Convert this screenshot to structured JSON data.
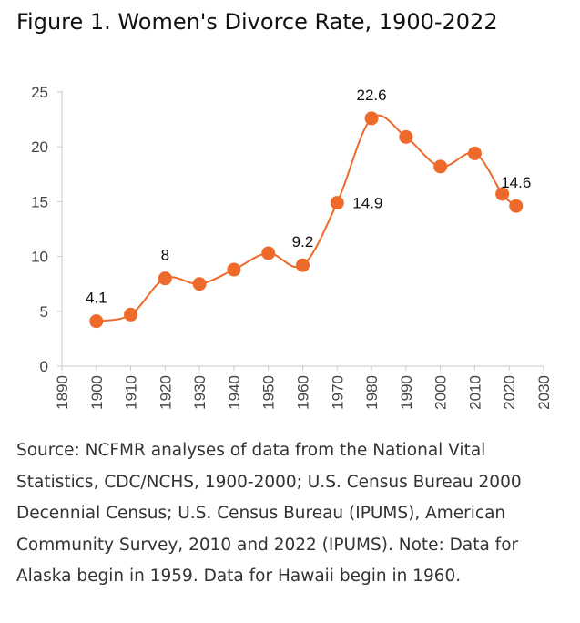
{
  "header": {
    "title": "Figure 1. Women's Divorce Rate, 1900-2022"
  },
  "chart_data": {
    "type": "line",
    "title": "",
    "xlabel": "",
    "ylabel": "",
    "xlim": [
      1890,
      2030
    ],
    "ylim": [
      0,
      25
    ],
    "x_ticks": [
      1890,
      1900,
      1910,
      1920,
      1930,
      1940,
      1950,
      1960,
      1970,
      1980,
      1990,
      2000,
      2010,
      2020,
      2030
    ],
    "y_ticks": [
      0,
      5,
      10,
      15,
      20,
      25
    ],
    "grid": false,
    "series": [
      {
        "color": "#ee6a2b",
        "x": [
          1900,
          1910,
          1920,
          1930,
          1940,
          1950,
          1960,
          1970,
          1980,
          1990,
          2000,
          2010,
          2018,
          2022
        ],
        "values": [
          4.1,
          4.7,
          8,
          7.5,
          8.8,
          10.3,
          9.2,
          14.9,
          22.6,
          20.9,
          18.2,
          19.4,
          15.7,
          14.6
        ]
      }
    ],
    "annotations": [
      {
        "x": 1900,
        "y": 4.1,
        "text": "4.1",
        "position": "above"
      },
      {
        "x": 1920,
        "y": 8,
        "text": "8",
        "position": "above"
      },
      {
        "x": 1960,
        "y": 9.2,
        "text": "9.2",
        "position": "above"
      },
      {
        "x": 1970,
        "y": 14.9,
        "text": "14.9",
        "position": "right"
      },
      {
        "x": 1980,
        "y": 22.6,
        "text": "22.6",
        "position": "above"
      },
      {
        "x": 2022,
        "y": 14.6,
        "text": "14.6",
        "position": "above"
      }
    ]
  },
  "footer": {
    "source": "Source: NCFMR analyses of data from the National Vital Statistics, CDC/NCHS, 1900-2000; U.S. Census Bureau 2000 Decennial Census; U.S. Census Bureau (IPUMS), American Community Survey, 2010 and 2022 (IPUMS). Note: Data for Alaska begin in 1959. Data for Hawaii begin in 1960."
  }
}
